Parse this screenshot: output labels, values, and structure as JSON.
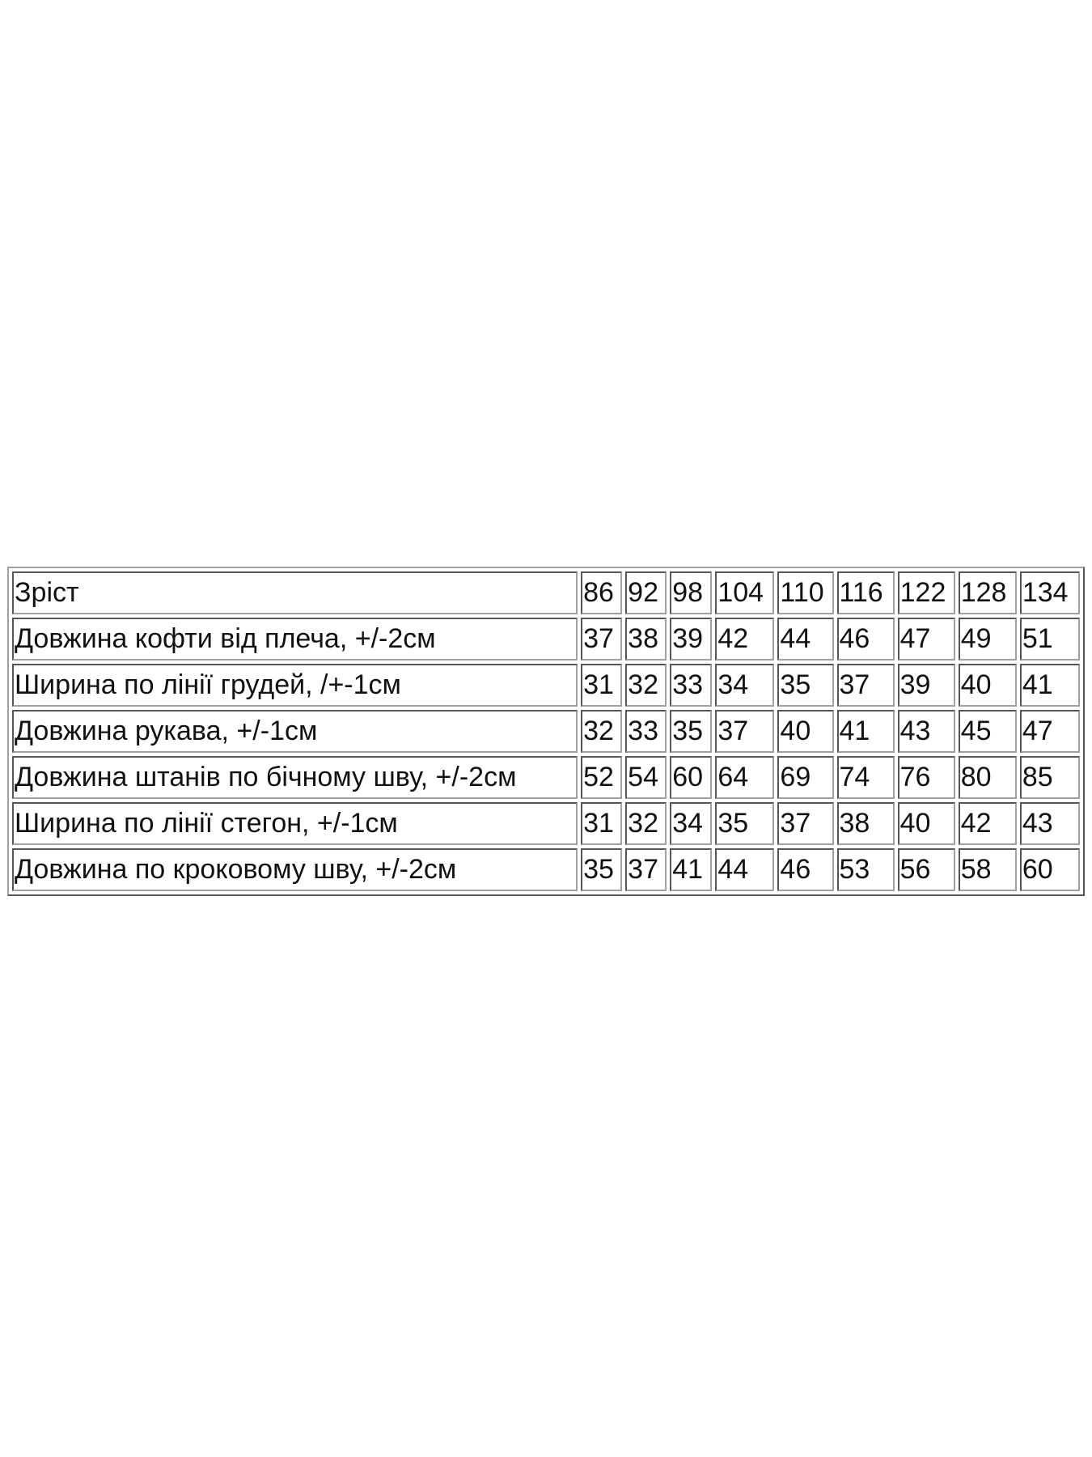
{
  "table": {
    "rows": [
      [
        "Зріст",
        86,
        92,
        98,
        104,
        110,
        116,
        122,
        128,
        134
      ],
      [
        "Довжина кофти від плеча, +/-2см",
        37,
        38,
        39,
        42,
        44,
        46,
        47,
        49,
        51
      ],
      [
        "Ширина по лінії грудей, /+-1см",
        31,
        32,
        33,
        34,
        35,
        37,
        39,
        40,
        41
      ],
      [
        "Довжина рукава, +/-1см",
        32,
        33,
        35,
        37,
        40,
        41,
        43,
        45,
        47
      ],
      [
        "Довжина штанів по бічному шву, +/-2см",
        52,
        54,
        60,
        64,
        69,
        74,
        76,
        80,
        85
      ],
      [
        "Ширина по лінії стегон, +/-1см",
        31,
        32,
        34,
        35,
        37,
        38,
        40,
        42,
        43
      ],
      [
        "Довжина по кроковому шву, +/-2см",
        35,
        37,
        41,
        44,
        46,
        53,
        56,
        58,
        60
      ]
    ]
  }
}
